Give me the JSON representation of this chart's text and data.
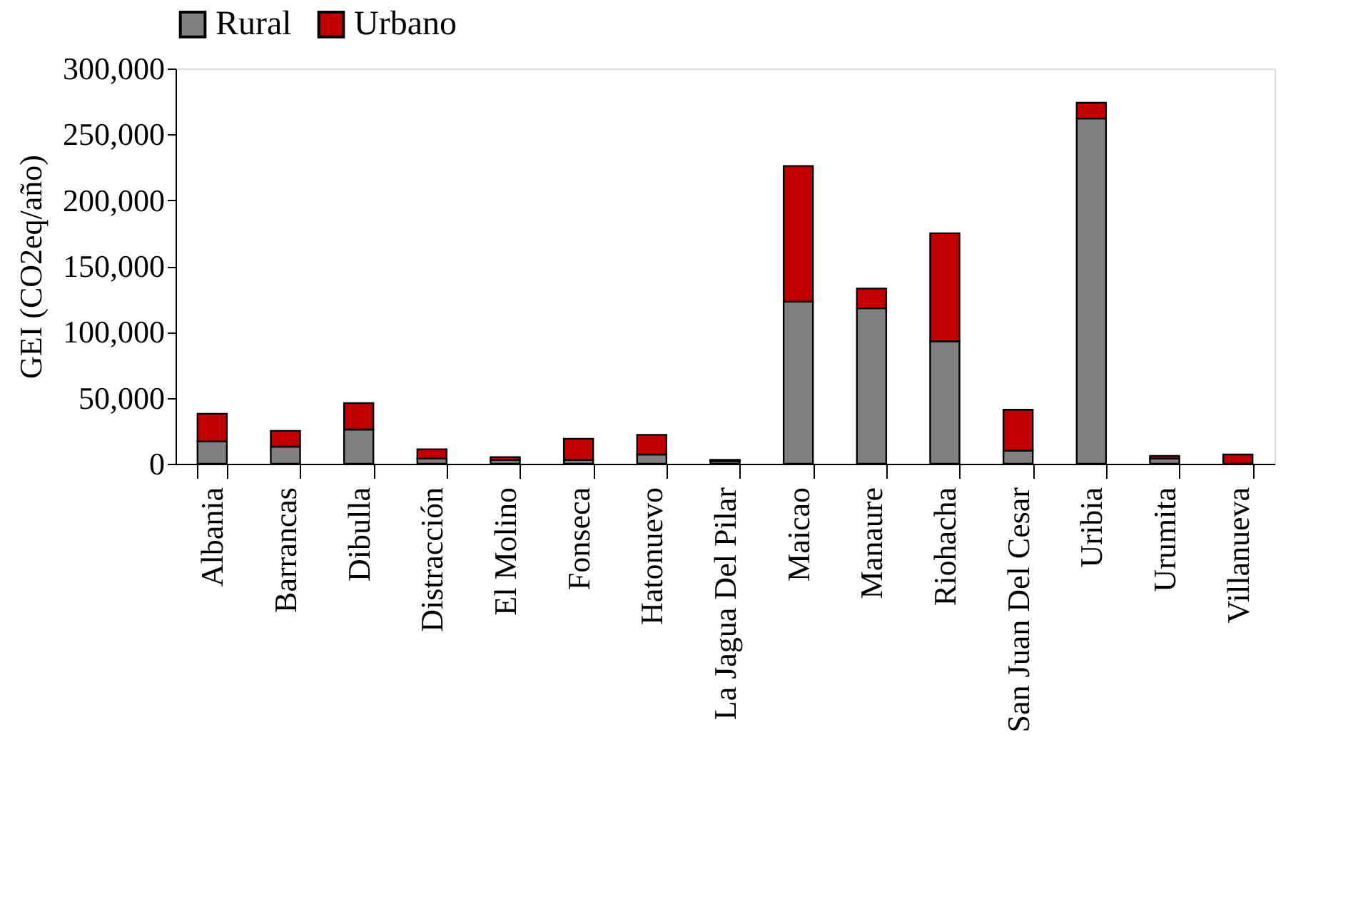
{
  "chart_data": {
    "type": "bar",
    "stacked": true,
    "ylabel": "GEI (CO2eq/año)",
    "categories": [
      "Albania",
      "Barrancas",
      "Dibulla",
      "Distracción",
      "El Molino",
      "Fonseca",
      "Hatonuevo",
      "La Jagua Del Pilar",
      "Maicao",
      "Manaure",
      "Riohacha",
      "San Juan Del Cesar",
      "Uribia",
      "Urumita",
      "Villanueva"
    ],
    "series": [
      {
        "name": "Rural",
        "color": "#808080",
        "values": [
          17000,
          13000,
          26000,
          4000,
          3000,
          3000,
          7000,
          2000,
          123000,
          118000,
          93000,
          10000,
          262000,
          4000,
          null
        ]
      },
      {
        "name": "Urbano",
        "color": "#c00000",
        "values": [
          21000,
          12000,
          20000,
          7000,
          2000,
          16000,
          15000,
          1000,
          103000,
          15000,
          82000,
          31000,
          12000,
          2000,
          7000
        ]
      }
    ],
    "ylim": [
      0,
      300000
    ],
    "yticks": [
      0,
      {
        "value": 50000,
        "label": "50,000"
      },
      {
        "value": 100000,
        "label": "100,000"
      },
      {
        "value": 150000,
        "label": "150,000"
      },
      {
        "value": 200000,
        "label": "200,000"
      },
      {
        "value": 250000,
        "label": "250,000"
      },
      {
        "value": 300000,
        "label": "300,000"
      }
    ],
    "grid": false,
    "legend": "top"
  }
}
